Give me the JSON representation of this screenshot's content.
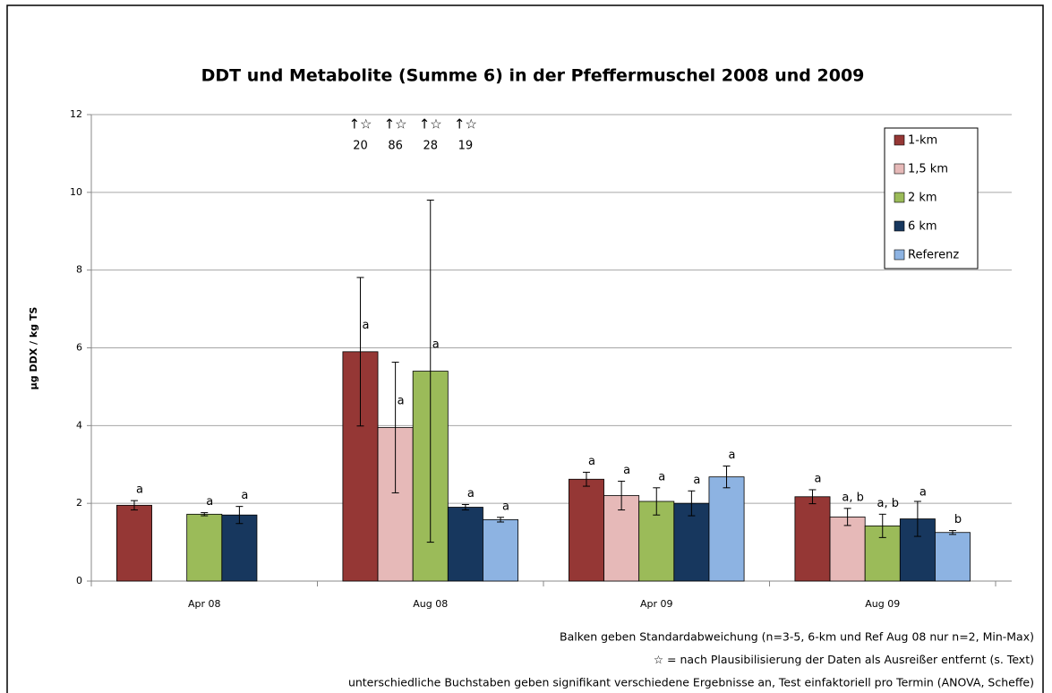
{
  "chart_data": {
    "type": "bar",
    "title": "DDT und Metabolite (Summe 6) in der Pfeffermuschel 2008 und 2009",
    "y_label": "µg DDX / kg TS",
    "categories": [
      "Apr 08",
      "Aug 08",
      "Apr 09",
      "Aug 09"
    ],
    "series": [
      {
        "name": "1-km",
        "color": "#953735",
        "values": [
          1.95,
          5.9,
          2.62,
          2.17
        ],
        "errors": [
          0.12,
          1.91,
          0.18,
          0.18
        ],
        "letters": [
          "a",
          "a",
          "a",
          "a"
        ]
      },
      {
        "name": "1,5 km",
        "color": "#e6b9b8",
        "values": [
          null,
          3.95,
          2.2,
          1.65
        ],
        "errors": [
          null,
          1.68,
          0.37,
          0.22
        ],
        "letters": [
          null,
          "a",
          "a",
          "a, b"
        ]
      },
      {
        "name": "2 km",
        "color": "#9bbb59",
        "values": [
          1.72,
          5.4,
          2.05,
          1.42
        ],
        "errors": [
          0.04,
          4.4,
          0.35,
          0.3
        ],
        "letters": [
          "a",
          "a",
          "a",
          "a, b"
        ]
      },
      {
        "name": "6 km",
        "color": "#17375e",
        "values": [
          1.7,
          1.9,
          2.0,
          1.6
        ],
        "errors": [
          0.22,
          0.07,
          0.32,
          0.45
        ],
        "letters": [
          "a",
          "a",
          "a",
          "a"
        ]
      },
      {
        "name": "Referenz",
        "color": "#8db3e2",
        "values": [
          null,
          1.58,
          2.68,
          1.25
        ],
        "errors": [
          null,
          0.06,
          0.28,
          0.05
        ],
        "letters": [
          null,
          "a",
          "a",
          "b"
        ]
      }
    ],
    "outlier_symbol": "↑☆",
    "outliers": [
      {
        "category": "Aug 08",
        "series": "1-km",
        "label": "20"
      },
      {
        "category": "Aug 08",
        "series": "1,5 km",
        "label": "86"
      },
      {
        "category": "Aug 08",
        "series": "2 km",
        "label": "28"
      },
      {
        "category": "Aug 08",
        "series": "6 km",
        "label": "19"
      }
    ],
    "ylim": [
      0,
      12
    ],
    "yticks": [
      0,
      2,
      4,
      6,
      8,
      10,
      12
    ],
    "grid": true,
    "legend": "upper right",
    "notes": [
      "Balken geben Standardabweichung (n=3-5, 6-km und Ref Aug 08 nur n=2, Min-Max)",
      "☆ = nach Plausibilisierung der Daten als Ausreißer entfernt (s. Text)",
      "unterschiedliche Buchstaben geben signifikant verschiedene Ergebnisse an, Test einfaktoriell pro Termin (ANOVA, Scheffe)"
    ]
  }
}
